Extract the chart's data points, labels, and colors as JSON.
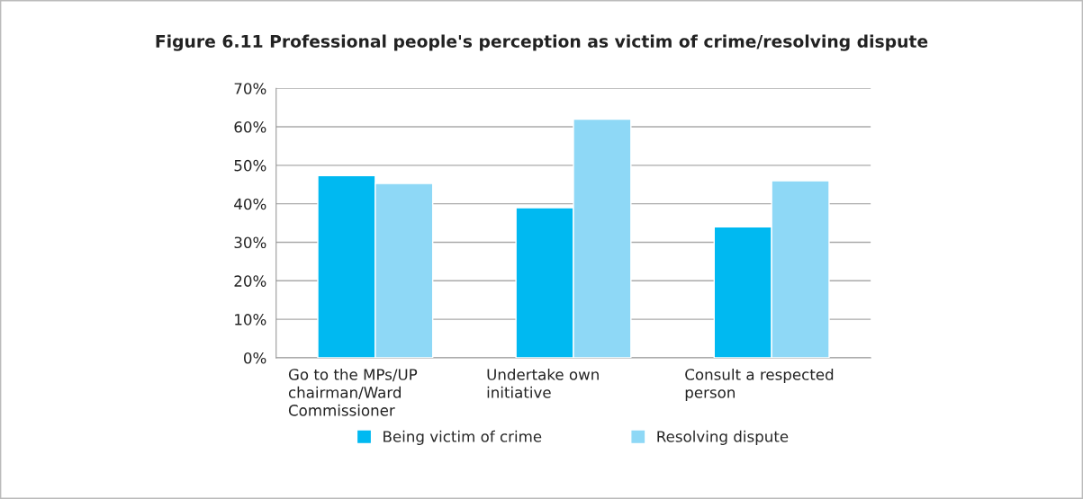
{
  "chart_data": {
    "type": "bar",
    "title": "Figure 6.11 Professional people's perception as victim of crime/resolving dispute",
    "categories": [
      "Go to the MPs/UP\nchairman/Ward\nCommissioner",
      "Undertake own\ninitiative",
      "Consult a respected\nperson"
    ],
    "series": [
      {
        "name": "Being victim of crime",
        "color": "#00b9f1",
        "values": [
          47.3,
          39,
          34
        ]
      },
      {
        "name": "Resolving dispute",
        "color": "#8ed8f6",
        "values": [
          45.3,
          62,
          46
        ]
      }
    ],
    "ylim": [
      0,
      70
    ],
    "yticks": [
      {
        "value": 0,
        "label": "0%"
      },
      {
        "value": 10,
        "label": "10%"
      },
      {
        "value": 20,
        "label": "20%"
      },
      {
        "value": 30,
        "label": "30%"
      },
      {
        "value": 40,
        "label": "40%"
      },
      {
        "value": 50,
        "label": "50%"
      },
      {
        "value": 60,
        "label": "60%"
      },
      {
        "value": 70,
        "label": "70%"
      }
    ],
    "grid": "y",
    "legend": "bottom"
  }
}
